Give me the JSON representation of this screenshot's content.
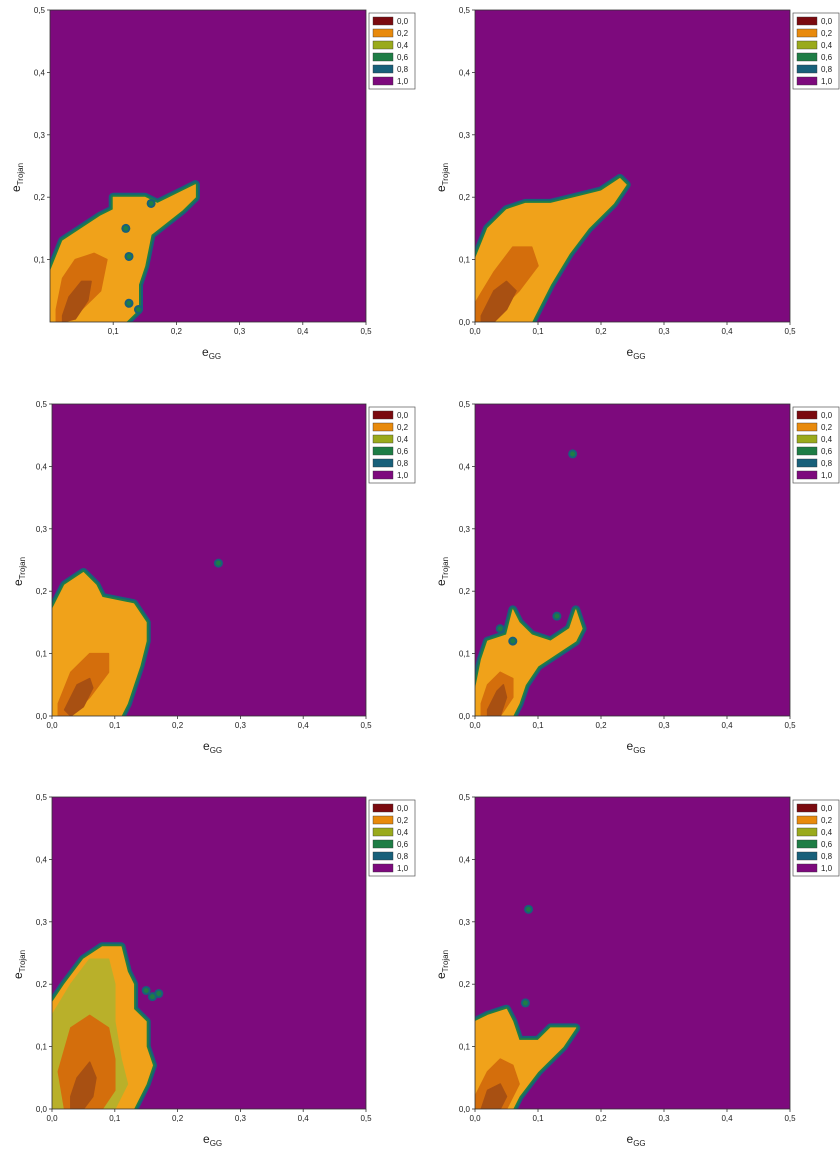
{
  "colors": {
    "0,0": "#7a0a0f",
    "0,2": "#e88a0c",
    "0,4": "#9aaa1c",
    "0,6": "#1e7d45",
    "0,8": "#18607a",
    "1,0": "#7d0a7d",
    "core_0": "#a85012",
    "core_1": "#d46e0c",
    "band_orange": "#f0a21a",
    "band_yellow": "#b9b02a"
  },
  "chart_data": [
    {
      "type": "contour",
      "xlabel": "e",
      "xlabel_sub": "GG",
      "ylabel": "e",
      "ylabel_sub": "Trojan",
      "xlim": [
        0.0,
        0.5
      ],
      "ylim": [
        0.0,
        0.5
      ],
      "x_ticks": [
        "0,1",
        "0,2",
        "0,3",
        "0,4",
        "0,5"
      ],
      "y_ticks": [
        "0,1",
        "0,2",
        "0,3",
        "0,4",
        "0,5"
      ],
      "legend": [
        "0,0",
        "0,2",
        "0,4",
        "0,6",
        "0,8",
        "1,0"
      ],
      "legend_position": "top-right",
      "background_level": "1,0",
      "region_boundary": [
        [
          0.0,
          0.08
        ],
        [
          0.02,
          0.13
        ],
        [
          0.05,
          0.15
        ],
        [
          0.08,
          0.17
        ],
        [
          0.1,
          0.18
        ],
        [
          0.1,
          0.2
        ],
        [
          0.15,
          0.2
        ],
        [
          0.17,
          0.19
        ],
        [
          0.21,
          0.21
        ],
        [
          0.23,
          0.22
        ],
        [
          0.23,
          0.2
        ],
        [
          0.21,
          0.18
        ],
        [
          0.16,
          0.14
        ],
        [
          0.15,
          0.09
        ],
        [
          0.14,
          0.06
        ],
        [
          0.14,
          0.02
        ],
        [
          0.12,
          0.0
        ],
        [
          0.0,
          0.0
        ]
      ],
      "cores": [
        {
          "level": "0,2",
          "points": [
            [
              0.01,
              0.02
            ],
            [
              0.02,
              0.07
            ],
            [
              0.04,
              0.1
            ],
            [
              0.07,
              0.11
            ],
            [
              0.09,
              0.1
            ],
            [
              0.08,
              0.05
            ],
            [
              0.05,
              0.02
            ],
            [
              0.02,
              0.0
            ],
            [
              0.01,
              0.0
            ]
          ]
        },
        {
          "level": "0,0",
          "points": [
            [
              0.02,
              0.01
            ],
            [
              0.03,
              0.04
            ],
            [
              0.05,
              0.065
            ],
            [
              0.065,
              0.065
            ],
            [
              0.06,
              0.035
            ],
            [
              0.04,
              0.005
            ],
            [
              0.02,
              0.0
            ]
          ]
        }
      ],
      "islands": [
        [
          0.12,
          0.15
        ],
        [
          0.125,
          0.105
        ],
        [
          0.125,
          0.03
        ],
        [
          0.14,
          0.02
        ],
        [
          0.16,
          0.19
        ]
      ]
    },
    {
      "type": "contour",
      "xlabel": "e",
      "xlabel_sub": "GG",
      "ylabel": "e",
      "ylabel_sub": "Trojan",
      "xlim": [
        0.0,
        0.5
      ],
      "ylim": [
        0.0,
        0.5
      ],
      "x_ticks": [
        "0,0",
        "0,1",
        "0,2",
        "0,3",
        "0,4",
        "0,5"
      ],
      "y_ticks": [
        "0,0",
        "0,1",
        "0,2",
        "0,3",
        "0,4",
        "0,5"
      ],
      "legend": [
        "0,0",
        "0,2",
        "0,4",
        "0,6",
        "0,8",
        "1,0"
      ],
      "legend_position": "top-right",
      "background_level": "1,0",
      "region_boundary": [
        [
          0.0,
          0.1
        ],
        [
          0.02,
          0.15
        ],
        [
          0.05,
          0.18
        ],
        [
          0.08,
          0.19
        ],
        [
          0.12,
          0.19
        ],
        [
          0.16,
          0.2
        ],
        [
          0.2,
          0.21
        ],
        [
          0.23,
          0.23
        ],
        [
          0.24,
          0.22
        ],
        [
          0.22,
          0.19
        ],
        [
          0.18,
          0.15
        ],
        [
          0.15,
          0.11
        ],
        [
          0.12,
          0.06
        ],
        [
          0.1,
          0.02
        ],
        [
          0.09,
          0.0
        ],
        [
          0.0,
          0.0
        ]
      ],
      "cores": [
        {
          "level": "0,2",
          "points": [
            [
              0.0,
              0.03
            ],
            [
              0.03,
              0.08
            ],
            [
              0.06,
              0.12
            ],
            [
              0.09,
              0.12
            ],
            [
              0.1,
              0.09
            ],
            [
              0.07,
              0.05
            ],
            [
              0.04,
              0.02
            ],
            [
              0.02,
              0.0
            ],
            [
              0.0,
              0.0
            ]
          ]
        },
        {
          "level": "0,0",
          "points": [
            [
              0.01,
              0.01
            ],
            [
              0.03,
              0.05
            ],
            [
              0.05,
              0.065
            ],
            [
              0.065,
              0.05
            ],
            [
              0.05,
              0.02
            ],
            [
              0.03,
              0.0
            ],
            [
              0.01,
              0.0
            ]
          ]
        }
      ],
      "islands": []
    },
    {
      "type": "contour",
      "xlabel": "e",
      "xlabel_sub": "GG",
      "ylabel": "e",
      "ylabel_sub": "Trojan",
      "xlim": [
        0.0,
        0.5
      ],
      "ylim": [
        0.0,
        0.5
      ],
      "x_ticks": [
        "0,0",
        "0,1",
        "0,2",
        "0,3",
        "0,4",
        "0,5"
      ],
      "y_ticks": [
        "0,0",
        "0,1",
        "0,2",
        "0,3",
        "0,4",
        "0,5"
      ],
      "legend": [
        "0,0",
        "0,2",
        "0,4",
        "0,6",
        "0,8",
        "1,0"
      ],
      "legend_position": "top-right",
      "background_level": "1,0",
      "region_boundary": [
        [
          0.0,
          0.12
        ],
        [
          0.0,
          0.17
        ],
        [
          0.02,
          0.21
        ],
        [
          0.05,
          0.23
        ],
        [
          0.07,
          0.21
        ],
        [
          0.08,
          0.19
        ],
        [
          0.13,
          0.18
        ],
        [
          0.15,
          0.15
        ],
        [
          0.15,
          0.12
        ],
        [
          0.14,
          0.08
        ],
        [
          0.13,
          0.05
        ],
        [
          0.12,
          0.02
        ],
        [
          0.11,
          0.0
        ],
        [
          0.0,
          0.0
        ]
      ],
      "cores": [
        {
          "level": "0,2",
          "points": [
            [
              0.01,
              0.02
            ],
            [
              0.03,
              0.07
            ],
            [
              0.06,
              0.1
            ],
            [
              0.09,
              0.1
            ],
            [
              0.09,
              0.07
            ],
            [
              0.06,
              0.03
            ],
            [
              0.03,
              0.0
            ],
            [
              0.01,
              0.0
            ]
          ]
        },
        {
          "level": "0,0",
          "points": [
            [
              0.02,
              0.01
            ],
            [
              0.04,
              0.05
            ],
            [
              0.06,
              0.06
            ],
            [
              0.065,
              0.045
            ],
            [
              0.05,
              0.015
            ],
            [
              0.03,
              0.0
            ]
          ]
        }
      ],
      "islands": [
        [
          0.265,
          0.245
        ]
      ]
    },
    {
      "type": "contour",
      "xlabel": "e",
      "xlabel_sub": "GG",
      "ylabel": "e",
      "ylabel_sub": "Trojan",
      "xlim": [
        0.0,
        0.5
      ],
      "ylim": [
        0.0,
        0.5
      ],
      "x_ticks": [
        "0,0",
        "0,1",
        "0,2",
        "0,3",
        "0,4",
        "0,5"
      ],
      "y_ticks": [
        "0,0",
        "0,1",
        "0,2",
        "0,3",
        "0,4",
        "0,5"
      ],
      "legend": [
        "0,0",
        "0,2",
        "0,4",
        "0,6",
        "0,8",
        "1,0"
      ],
      "legend_position": "top-right",
      "background_level": "1,0",
      "region_boundary": [
        [
          0.0,
          0.04
        ],
        [
          0.01,
          0.09
        ],
        [
          0.02,
          0.12
        ],
        [
          0.05,
          0.13
        ],
        [
          0.06,
          0.17
        ],
        [
          0.07,
          0.15
        ],
        [
          0.09,
          0.13
        ],
        [
          0.12,
          0.12
        ],
        [
          0.15,
          0.14
        ],
        [
          0.16,
          0.17
        ],
        [
          0.17,
          0.14
        ],
        [
          0.16,
          0.12
        ],
        [
          0.13,
          0.1
        ],
        [
          0.1,
          0.08
        ],
        [
          0.08,
          0.05
        ],
        [
          0.07,
          0.02
        ],
        [
          0.06,
          0.0
        ],
        [
          0.0,
          0.0
        ]
      ],
      "cores": [
        {
          "level": "0,2",
          "points": [
            [
              0.01,
              0.02
            ],
            [
              0.02,
              0.05
            ],
            [
              0.04,
              0.07
            ],
            [
              0.06,
              0.06
            ],
            [
              0.06,
              0.03
            ],
            [
              0.04,
              0.0
            ],
            [
              0.01,
              0.0
            ]
          ]
        },
        {
          "level": "0,0",
          "points": [
            [
              0.02,
              0.01
            ],
            [
              0.035,
              0.04
            ],
            [
              0.045,
              0.05
            ],
            [
              0.05,
              0.03
            ],
            [
              0.04,
              0.0
            ],
            [
              0.02,
              0.0
            ]
          ]
        }
      ],
      "islands": [
        [
          0.04,
          0.14
        ],
        [
          0.06,
          0.12
        ],
        [
          0.13,
          0.16
        ],
        [
          0.155,
          0.42
        ]
      ]
    },
    {
      "type": "contour",
      "xlabel": "e",
      "xlabel_sub": "GG",
      "ylabel": "e",
      "ylabel_sub": "Trojan",
      "xlim": [
        0.0,
        0.5
      ],
      "ylim": [
        0.0,
        0.5
      ],
      "x_ticks": [
        "0,0",
        "0,1",
        "0,2",
        "0,3",
        "0,4",
        "0,5"
      ],
      "y_ticks": [
        "0,0",
        "0,1",
        "0,2",
        "0,3",
        "0,4",
        "0,5"
      ],
      "legend": [
        "0,0",
        "0,2",
        "0,4",
        "0,6",
        "0,8",
        "1,0"
      ],
      "legend_position": "top-right",
      "background_level": "1,0",
      "region_boundary": [
        [
          0.0,
          0.17
        ],
        [
          0.02,
          0.2
        ],
        [
          0.05,
          0.24
        ],
        [
          0.08,
          0.26
        ],
        [
          0.11,
          0.26
        ],
        [
          0.12,
          0.22
        ],
        [
          0.13,
          0.2
        ],
        [
          0.13,
          0.16
        ],
        [
          0.15,
          0.14
        ],
        [
          0.15,
          0.1
        ],
        [
          0.16,
          0.07
        ],
        [
          0.15,
          0.04
        ],
        [
          0.14,
          0.02
        ],
        [
          0.13,
          0.0
        ],
        [
          0.0,
          0.0
        ]
      ],
      "cores": [
        {
          "level": "0,4",
          "points": [
            [
              0.0,
              0.15
            ],
            [
              0.03,
              0.2
            ],
            [
              0.06,
              0.24
            ],
            [
              0.09,
              0.24
            ],
            [
              0.1,
              0.2
            ],
            [
              0.1,
              0.14
            ],
            [
              0.11,
              0.08
            ],
            [
              0.12,
              0.04
            ],
            [
              0.1,
              0.0
            ],
            [
              0.0,
              0.0
            ]
          ]
        },
        {
          "level": "0,2",
          "points": [
            [
              0.01,
              0.06
            ],
            [
              0.03,
              0.13
            ],
            [
              0.06,
              0.15
            ],
            [
              0.09,
              0.13
            ],
            [
              0.1,
              0.08
            ],
            [
              0.1,
              0.03
            ],
            [
              0.08,
              0.0
            ],
            [
              0.02,
              0.0
            ]
          ]
        },
        {
          "level": "0,0",
          "points": [
            [
              0.03,
              0.02
            ],
            [
              0.04,
              0.05
            ],
            [
              0.06,
              0.075
            ],
            [
              0.07,
              0.05
            ],
            [
              0.065,
              0.02
            ],
            [
              0.05,
              0.0
            ],
            [
              0.03,
              0.0
            ]
          ]
        }
      ],
      "islands": [
        [
          0.15,
          0.19
        ],
        [
          0.16,
          0.18
        ],
        [
          0.17,
          0.185
        ]
      ]
    },
    {
      "type": "contour",
      "xlabel": "e",
      "xlabel_sub": "GG",
      "ylabel": "e",
      "ylabel_sub": "Trojan",
      "xlim": [
        0.0,
        0.5
      ],
      "ylim": [
        0.0,
        0.5
      ],
      "x_ticks": [
        "0,0",
        "0,1",
        "0,2",
        "0,3",
        "0,4",
        "0,5"
      ],
      "y_ticks": [
        "0,0",
        "0,1",
        "0,2",
        "0,3",
        "0,4",
        "0,5"
      ],
      "legend": [
        "0,0",
        "0,2",
        "0,4",
        "0,6",
        "0,8",
        "1,0"
      ],
      "legend_position": "top-right",
      "background_level": "1,0",
      "region_boundary": [
        [
          0.0,
          0.09
        ],
        [
          0.0,
          0.14
        ],
        [
          0.02,
          0.15
        ],
        [
          0.05,
          0.16
        ],
        [
          0.06,
          0.14
        ],
        [
          0.07,
          0.11
        ],
        [
          0.1,
          0.11
        ],
        [
          0.12,
          0.13
        ],
        [
          0.16,
          0.13
        ],
        [
          0.14,
          0.1
        ],
        [
          0.1,
          0.06
        ],
        [
          0.07,
          0.02
        ],
        [
          0.06,
          0.0
        ],
        [
          0.0,
          0.0
        ]
      ],
      "cores": [
        {
          "level": "0,2",
          "points": [
            [
              0.0,
              0.02
            ],
            [
              0.02,
              0.06
            ],
            [
              0.04,
              0.08
            ],
            [
              0.06,
              0.07
            ],
            [
              0.07,
              0.04
            ],
            [
              0.05,
              0.0
            ],
            [
              0.0,
              0.0
            ]
          ]
        },
        {
          "level": "0,0",
          "points": [
            [
              0.01,
              0.0
            ],
            [
              0.02,
              0.03
            ],
            [
              0.04,
              0.04
            ],
            [
              0.05,
              0.02
            ],
            [
              0.04,
              0.0
            ]
          ]
        }
      ],
      "islands": [
        [
          0.085,
          0.32
        ],
        [
          0.08,
          0.17
        ]
      ]
    }
  ]
}
